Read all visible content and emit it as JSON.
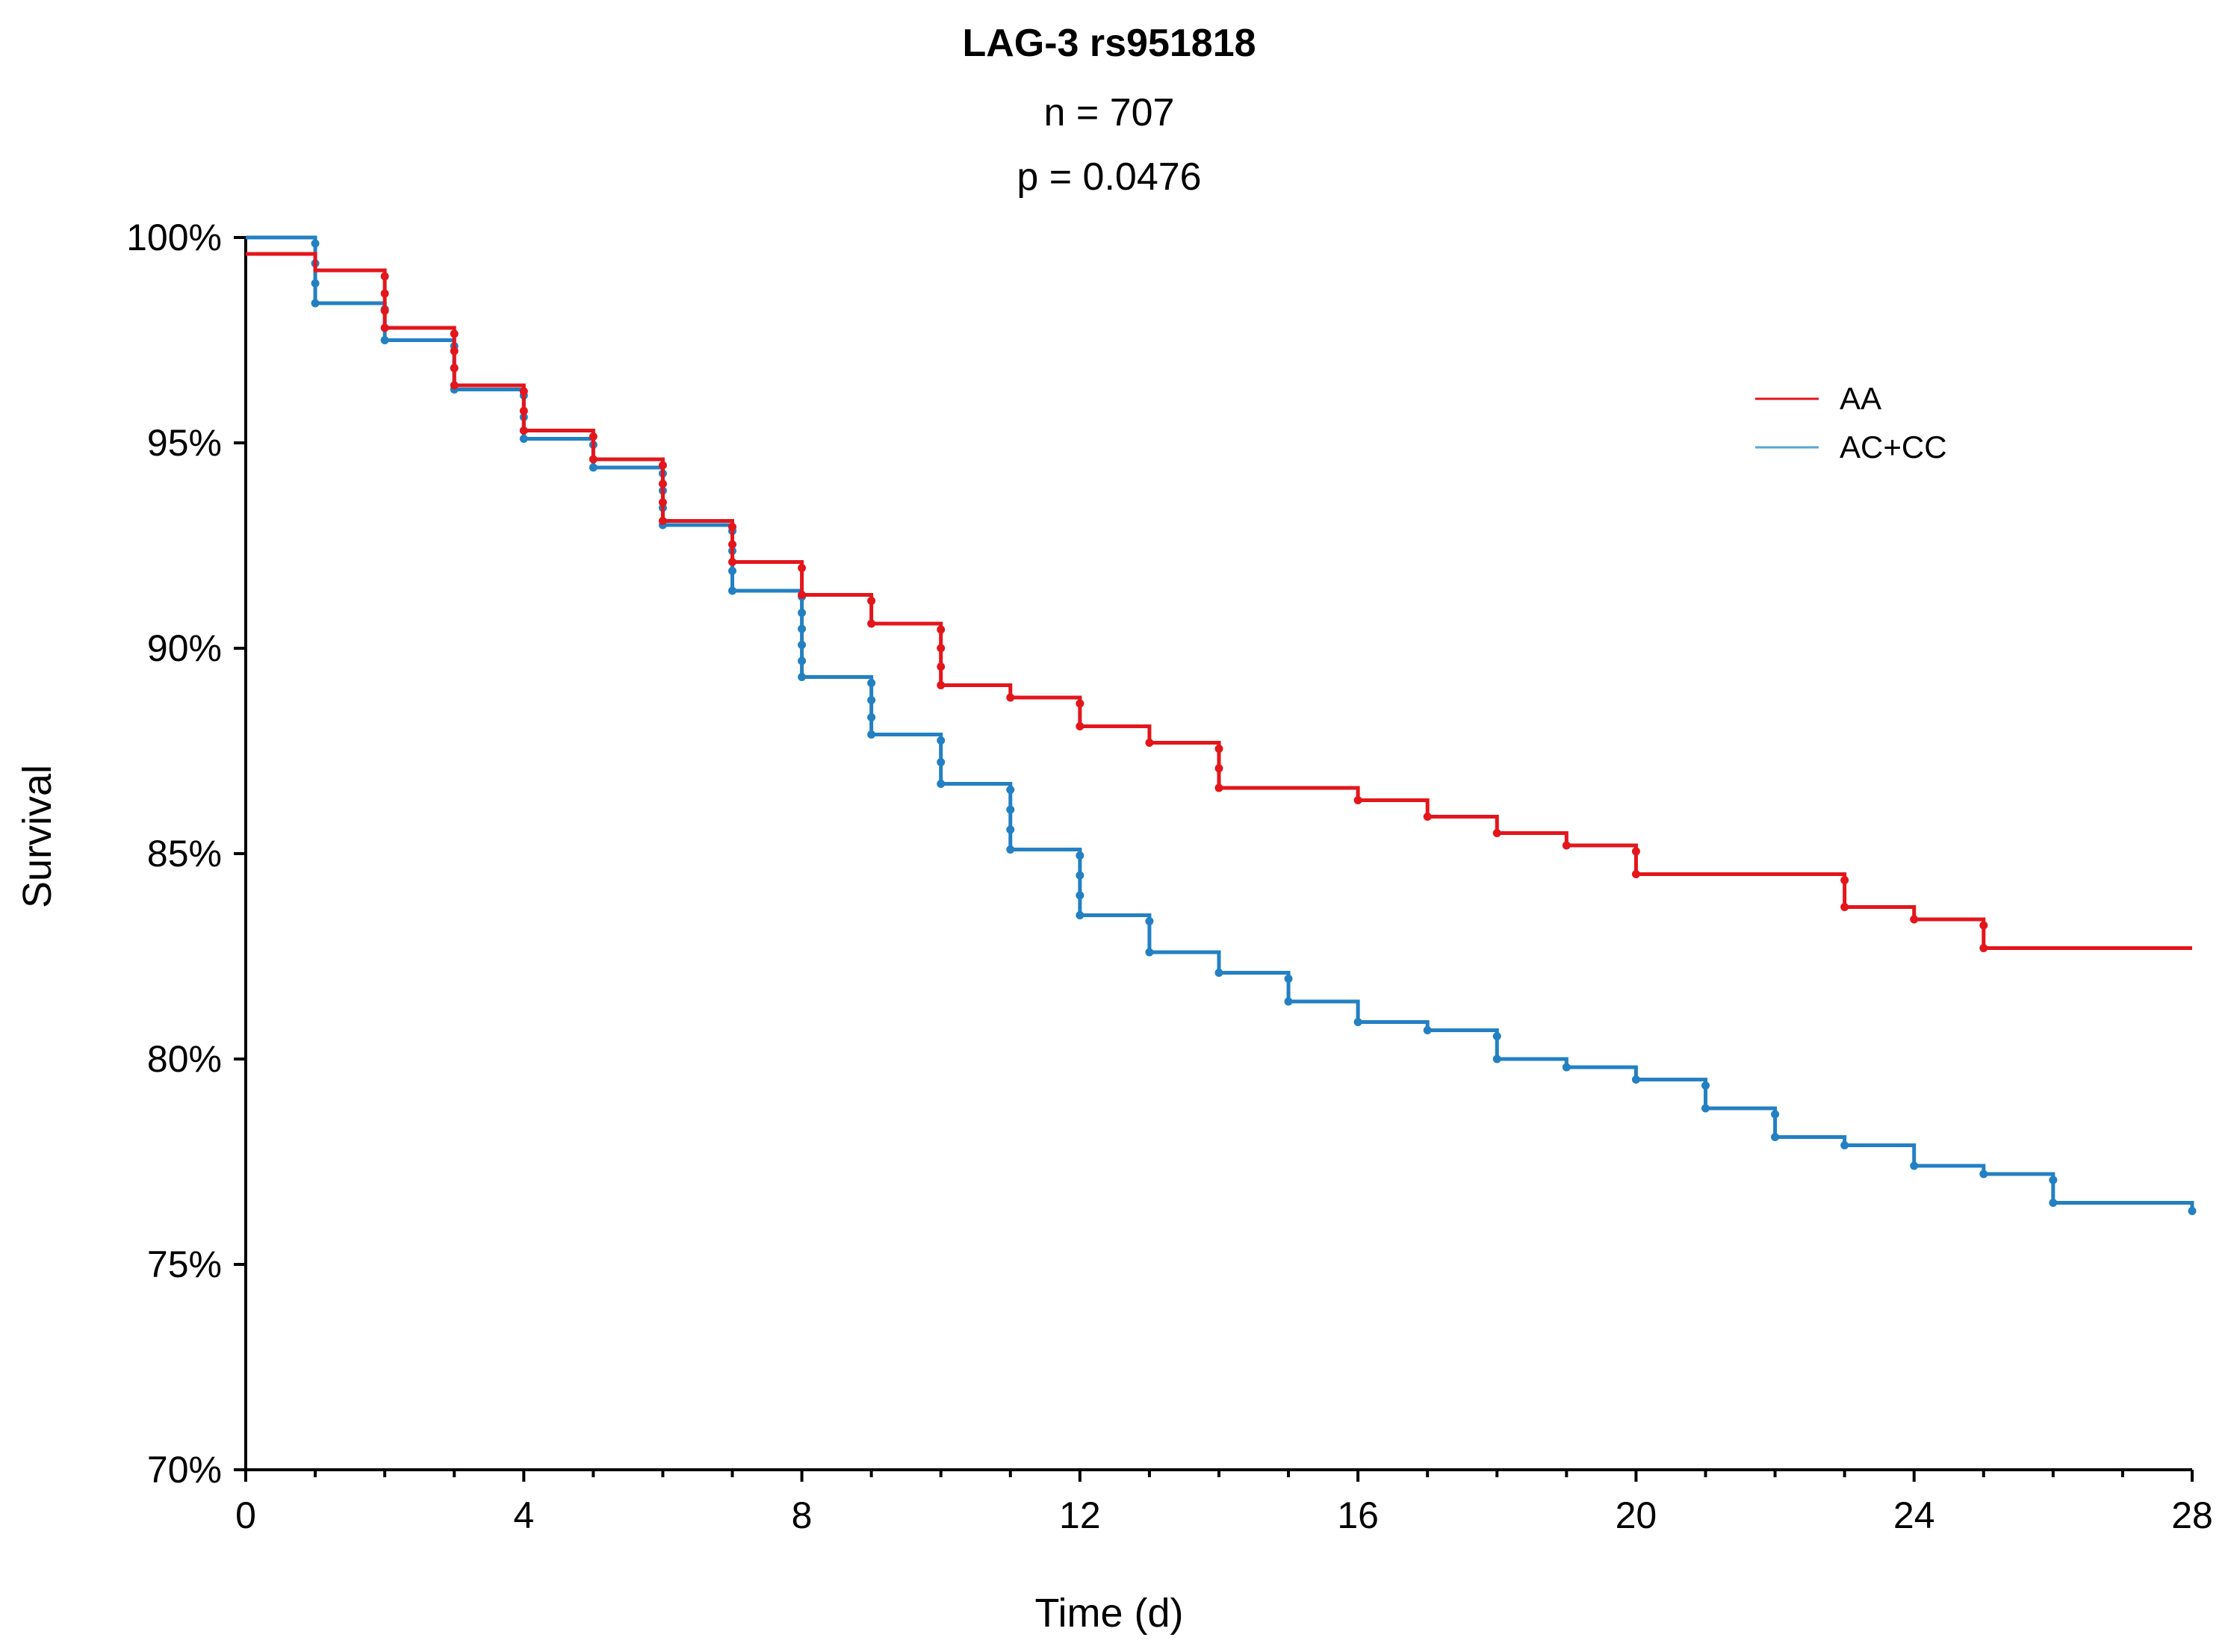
{
  "chart_data": {
    "type": "line",
    "subtype": "kaplan-meier-step",
    "title": "LAG-3 rs951818",
    "subtitle_n": "n = 707",
    "subtitle_p": "p = 0.0476",
    "xlabel": "Time (d)",
    "ylabel": "Survival",
    "xlim": [
      0,
      28
    ],
    "ylim": [
      70,
      100
    ],
    "x_ticks": [
      0,
      4,
      8,
      12,
      16,
      20,
      24,
      28
    ],
    "x_tick_labels": [
      "0",
      "4",
      "8",
      "12",
      "16",
      "20",
      "24",
      "28"
    ],
    "y_ticks": [
      70,
      75,
      80,
      85,
      90,
      95,
      100
    ],
    "y_tick_labels": [
      "70%",
      "75%",
      "80%",
      "85%",
      "90%",
      "95%",
      "100%"
    ],
    "grid": false,
    "legend_position": "top-right",
    "series": [
      {
        "name": "AA",
        "color": "#e3161b",
        "steps": [
          [
            0,
            99.6
          ],
          [
            1,
            99.2
          ],
          [
            2,
            97.8
          ],
          [
            3,
            96.4
          ],
          [
            4,
            95.3
          ],
          [
            5,
            94.6
          ],
          [
            6,
            93.1
          ],
          [
            7,
            92.1
          ],
          [
            8,
            91.3
          ],
          [
            9,
            90.6
          ],
          [
            10,
            89.1
          ],
          [
            11,
            88.8
          ],
          [
            12,
            88.1
          ],
          [
            13,
            87.7
          ],
          [
            14,
            86.6
          ],
          [
            16,
            86.3
          ],
          [
            17,
            85.9
          ],
          [
            18,
            85.5
          ],
          [
            19,
            85.2
          ],
          [
            20,
            84.5
          ],
          [
            23,
            83.7
          ],
          [
            24,
            83.4
          ],
          [
            25,
            82.7
          ],
          [
            28,
            82.7
          ]
        ],
        "censor_times": [
          2,
          3,
          4,
          5,
          6,
          7,
          8,
          9,
          10,
          11,
          12,
          13,
          14,
          16,
          17,
          18,
          19,
          20,
          23,
          24,
          25
        ]
      },
      {
        "name": "AC+CC",
        "color": "#2380c3",
        "steps": [
          [
            0,
            100.0
          ],
          [
            1,
            98.4
          ],
          [
            2,
            97.5
          ],
          [
            3,
            96.3
          ],
          [
            4,
            95.1
          ],
          [
            5,
            94.4
          ],
          [
            6,
            93.0
          ],
          [
            7,
            91.4
          ],
          [
            8,
            89.3
          ],
          [
            9,
            87.9
          ],
          [
            10,
            86.7
          ],
          [
            11,
            85.1
          ],
          [
            12,
            83.5
          ],
          [
            13,
            82.6
          ],
          [
            14,
            82.1
          ],
          [
            15,
            81.4
          ],
          [
            16,
            80.9
          ],
          [
            17,
            80.7
          ],
          [
            18,
            80.0
          ],
          [
            19,
            79.8
          ],
          [
            20,
            79.5
          ],
          [
            21,
            78.8
          ],
          [
            22,
            78.1
          ],
          [
            23,
            77.9
          ],
          [
            24,
            77.4
          ],
          [
            25,
            77.2
          ],
          [
            26,
            76.5
          ],
          [
            28,
            76.3
          ]
        ],
        "censor_times": [
          1,
          2,
          3,
          4,
          5,
          6,
          7,
          8,
          9,
          10,
          11,
          12,
          13,
          14,
          15,
          16,
          17,
          18,
          19,
          20,
          21,
          22,
          23,
          24,
          25,
          26,
          28
        ]
      }
    ]
  }
}
